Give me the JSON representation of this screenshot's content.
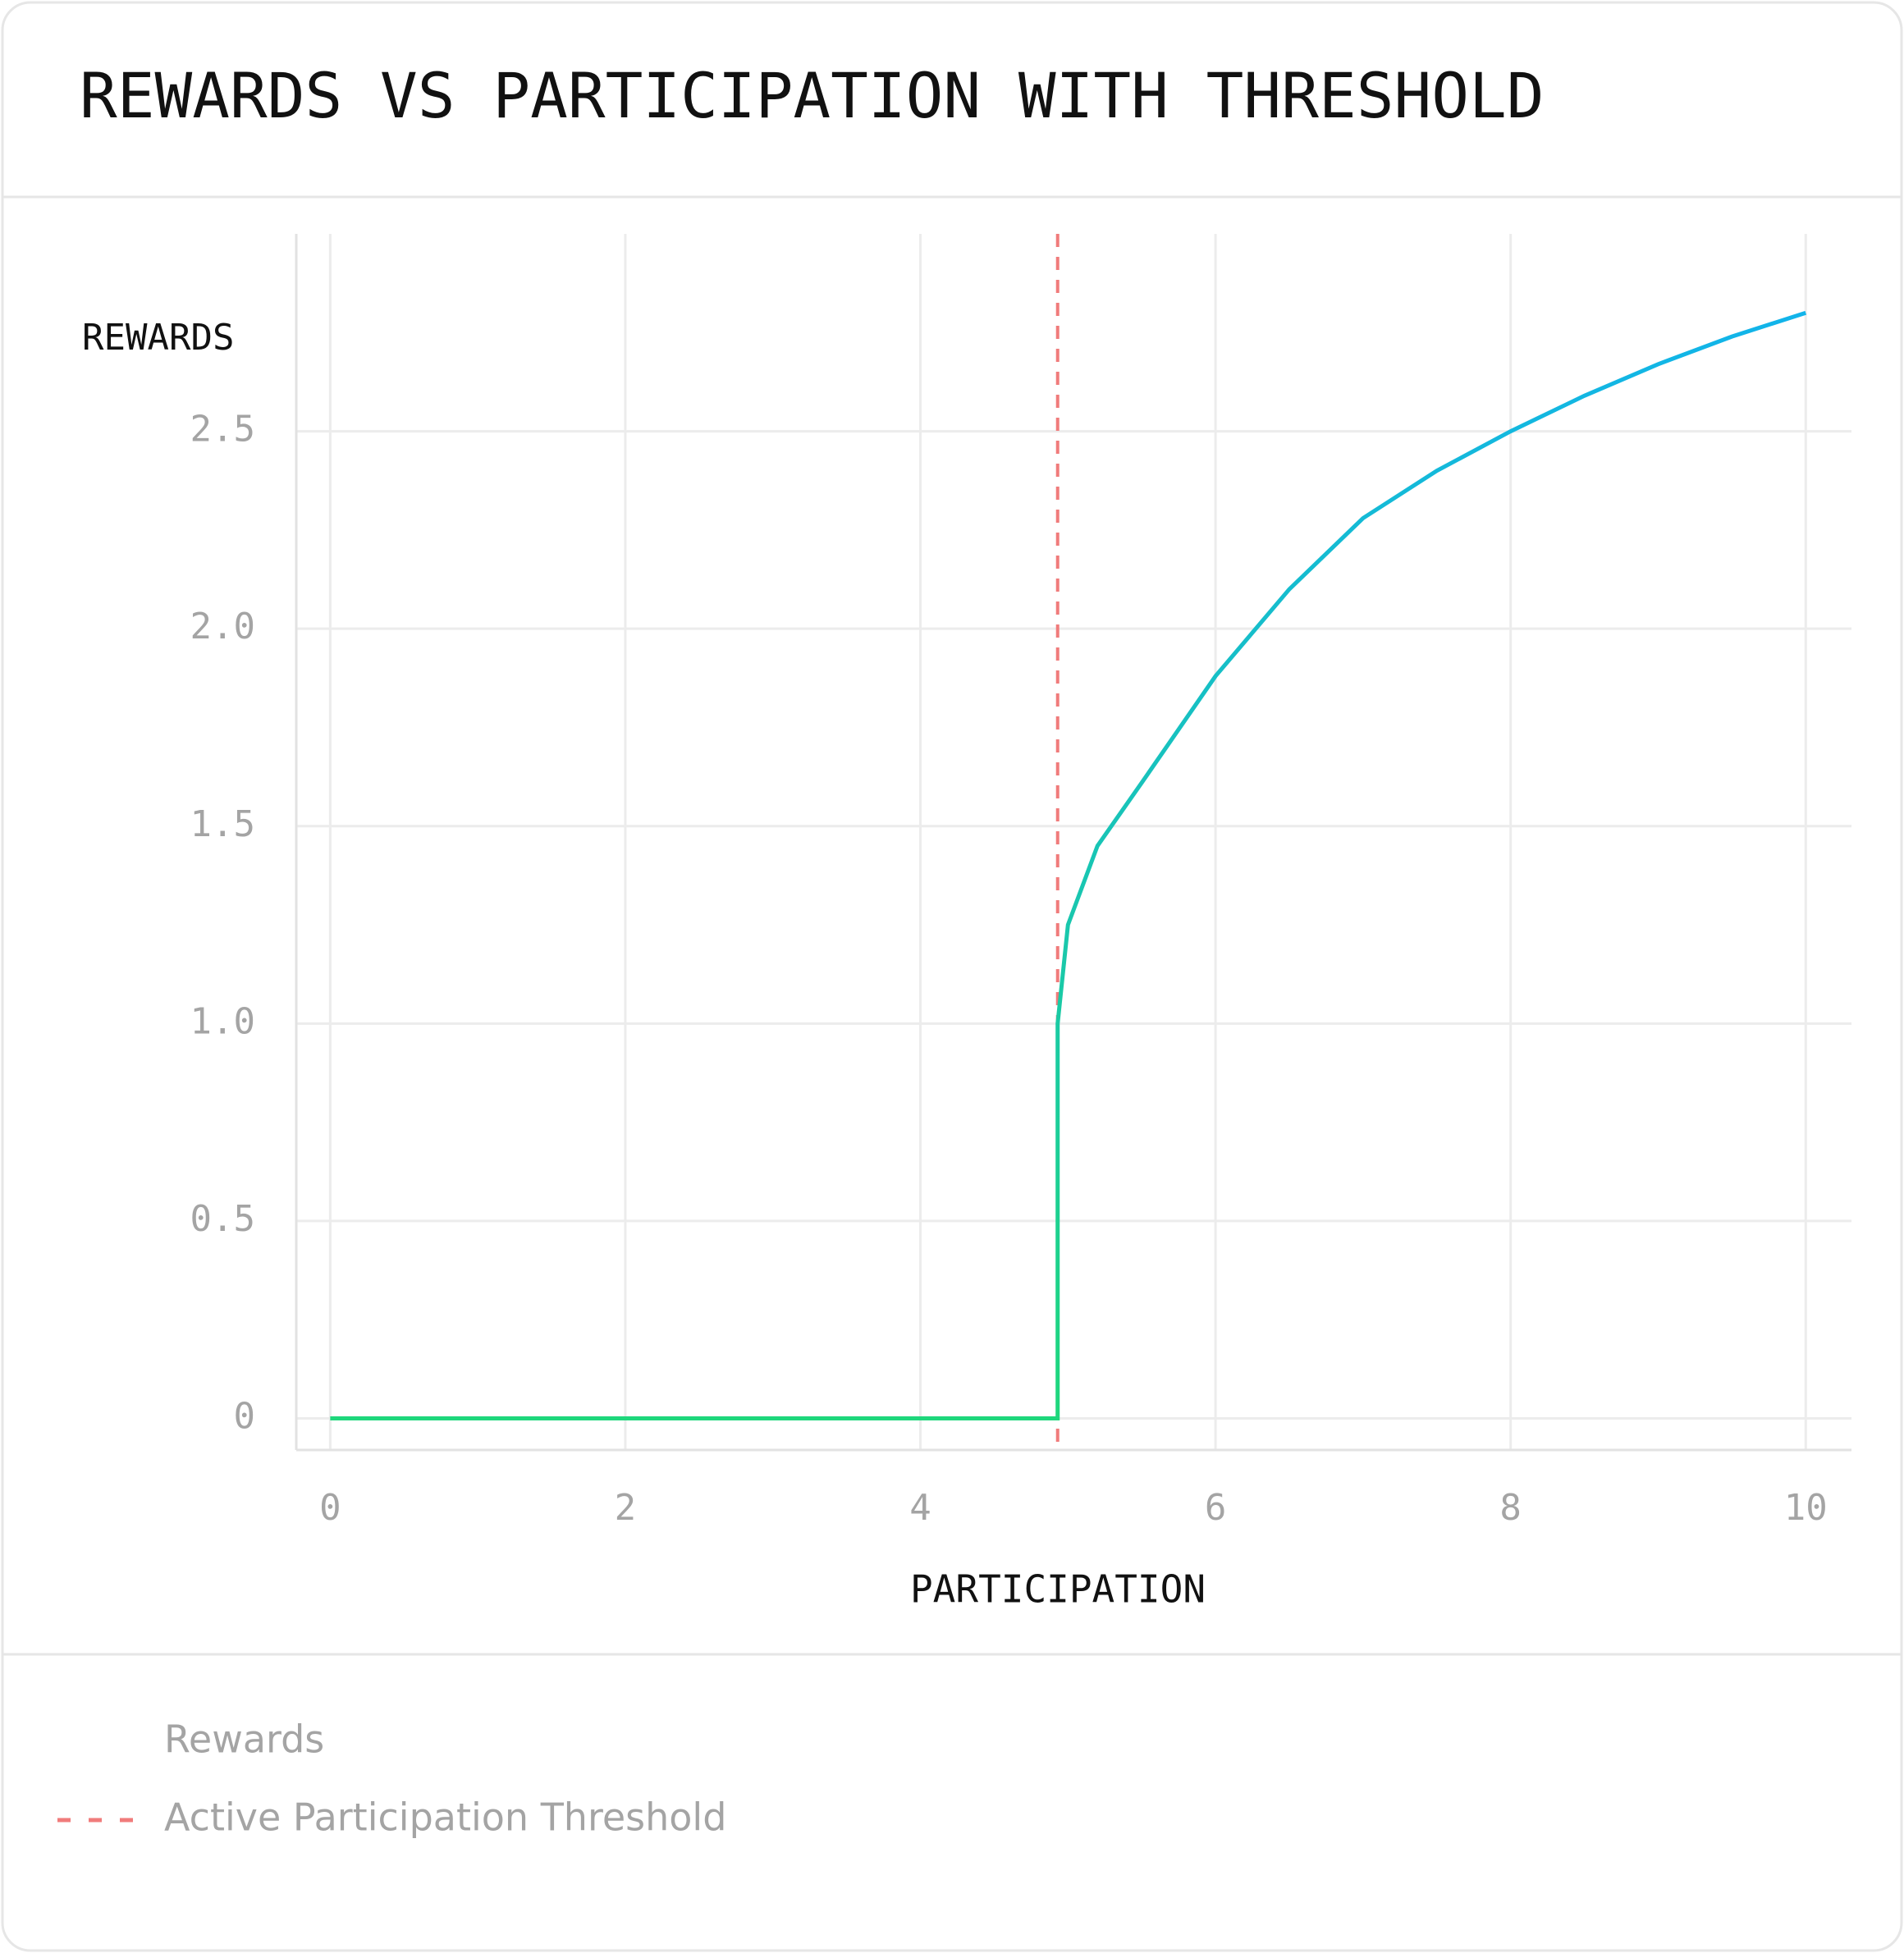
{
  "chart_data": {
    "type": "line",
    "title": "REWARDS VS PARTICIPATION WITH THRESHOLD",
    "y_label": "REWARDS",
    "x_label": "PARTICIPATION",
    "x": [
      0,
      4.93,
      4.93,
      5.0,
      5.2,
      5.5,
      6,
      6.5,
      7,
      7.5,
      8,
      8.5,
      9,
      9.5,
      10
    ],
    "series": [
      {
        "name": "Rewards",
        "gradient": [
          "#1fd77c",
          "#12b4ea"
        ],
        "values": [
          0,
          0,
          1.0,
          1.25,
          1.45,
          1.61,
          1.88,
          2.1,
          2.28,
          2.4,
          2.5,
          2.59,
          2.67,
          2.74,
          2.8
        ]
      }
    ],
    "threshold": {
      "name": "Active Participation Threshold",
      "x": 4.93,
      "color": "#f07b7b"
    },
    "xlim": [
      -0.23,
      10.31
    ],
    "ylim": [
      -0.08,
      3.0
    ],
    "xticks": [
      0,
      2,
      4,
      6,
      8,
      10
    ],
    "yticks": [
      0,
      0.5,
      {
        "value": 1.0,
        "label": "1.0"
      },
      1.5,
      {
        "value": 2.0,
        "label": "2.0"
      },
      2.5
    ],
    "grid": true
  }
}
